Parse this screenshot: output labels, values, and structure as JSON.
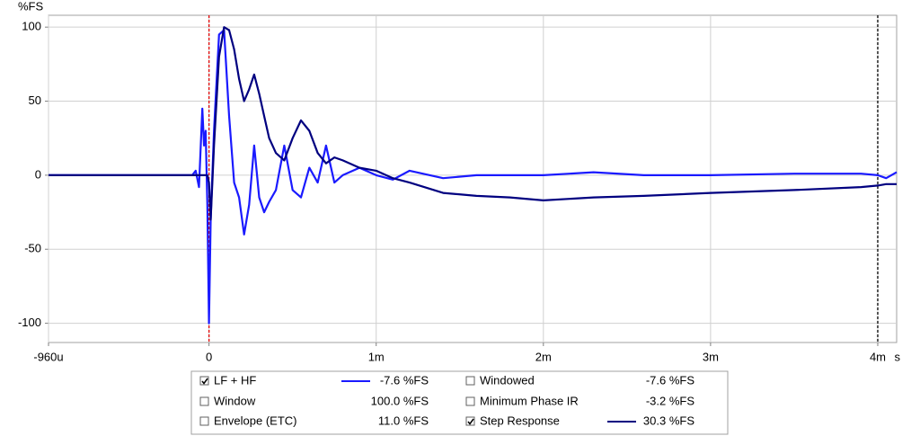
{
  "chart_data": {
    "type": "line",
    "y_label": "%FS",
    "x_label": "s",
    "xlim": [
      -0.96,
      4.113
    ],
    "ylim": [
      -113,
      108
    ],
    "xticks": [
      {
        "value": -0.96,
        "label": "-960u"
      },
      0,
      {
        "value": 1,
        "label": "1m"
      },
      {
        "value": 2,
        "label": "2m"
      },
      {
        "value": 3,
        "label": "3m"
      },
      {
        "value": 4,
        "label": "4m"
      }
    ],
    "yticks": [
      100,
      50,
      0,
      -50,
      -100
    ],
    "grid": true,
    "markers": [
      {
        "value": 0,
        "color": "#e00000"
      },
      {
        "value": 4,
        "color": "#000000"
      }
    ],
    "x": [
      -0.96,
      -0.5,
      -0.1,
      -0.08,
      -0.06,
      -0.04,
      -0.03,
      -0.02,
      -0.01,
      0,
      0.01,
      0.03,
      0.06,
      0.09,
      0.12,
      0.15,
      0.18,
      0.21,
      0.24,
      0.27,
      0.3,
      0.33,
      0.36,
      0.4,
      0.45,
      0.5,
      0.55,
      0.6,
      0.65,
      0.7,
      0.75,
      0.8,
      0.9,
      1.0,
      1.1,
      1.2,
      1.4,
      1.6,
      1.8,
      2.0,
      2.3,
      2.6,
      3.0,
      3.5,
      3.9,
      4.0,
      4.05,
      4.113
    ],
    "series": [
      {
        "name": "LF + HF",
        "color": "#1a1aff",
        "checked": true,
        "readout": "-7.6 %FS",
        "values": [
          0,
          0,
          0,
          3,
          -8,
          45,
          20,
          30,
          -20,
          -100,
          -30,
          30,
          95,
          98,
          40,
          -5,
          -15,
          -40,
          -20,
          20,
          -15,
          -25,
          -18,
          -10,
          20,
          -10,
          -15,
          5,
          -5,
          20,
          -5,
          0,
          5,
          0,
          -3,
          3,
          -2,
          0,
          0,
          0,
          2,
          0,
          0,
          1,
          1,
          0,
          -2,
          2
        ]
      },
      {
        "name": "Step Response",
        "color": "#000080",
        "checked": true,
        "readout": "30.3 %FS",
        "values": [
          0,
          0,
          0,
          0,
          0,
          0,
          0,
          0,
          0,
          -5,
          -30,
          20,
          80,
          100,
          98,
          85,
          65,
          50,
          58,
          68,
          55,
          40,
          25,
          15,
          10,
          25,
          37,
          30,
          15,
          8,
          12,
          10,
          5,
          3,
          -2,
          -5,
          -12,
          -14,
          -15,
          -17,
          -15,
          -14,
          -12,
          -10,
          -8,
          -7,
          -6,
          -6
        ]
      }
    ],
    "other_traces": [
      {
        "name": "Windowed",
        "checked": false,
        "readout": "-7.6 %FS",
        "enabled": true
      },
      {
        "name": "Window",
        "checked": false,
        "readout": "100.0 %FS",
        "enabled": true
      },
      {
        "name": "Minimum Phase IR",
        "checked": false,
        "readout": "-3.2 %FS",
        "enabled": false
      },
      {
        "name": "Envelope (ETC)",
        "checked": false,
        "readout": "11.0 %FS",
        "enabled": true
      }
    ]
  }
}
